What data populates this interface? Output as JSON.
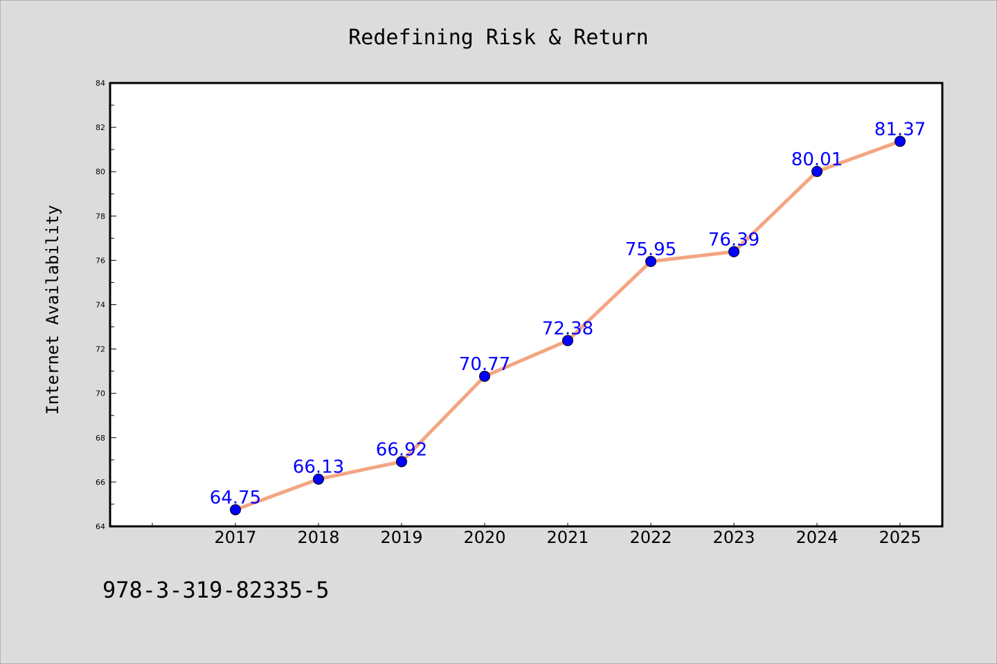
{
  "chart_data": {
    "type": "line",
    "title": "Redefining Risk & Return",
    "xlabel": "",
    "ylabel": "Internet Availability",
    "categories": [
      "2017",
      "2018",
      "2019",
      "2020",
      "2021",
      "2022",
      "2023",
      "2024",
      "2025"
    ],
    "series": [
      {
        "values": [
          64.75,
          66.13,
          66.92,
          70.77,
          72.38,
          75.95,
          76.39,
          80.01,
          81.37
        ]
      }
    ],
    "data_labels": [
      "64.75",
      "66.13",
      "66.92",
      "70.77",
      "72.38",
      "75.95",
      "76.39",
      "80.01",
      "81.37"
    ],
    "ylim": [
      64,
      84
    ],
    "yticks": [
      "64",
      "66",
      "68",
      "70",
      "72",
      "74",
      "76",
      "78",
      "80",
      "82",
      "84"
    ],
    "grid": false,
    "line_color": "#f4a582",
    "marker_color": "#0000ff",
    "label_color": "#0000ff",
    "background": "#dcdcdc",
    "plot_background": "#ffffff"
  },
  "footer": {
    "isbn": "978-3-319-82335-5"
  }
}
